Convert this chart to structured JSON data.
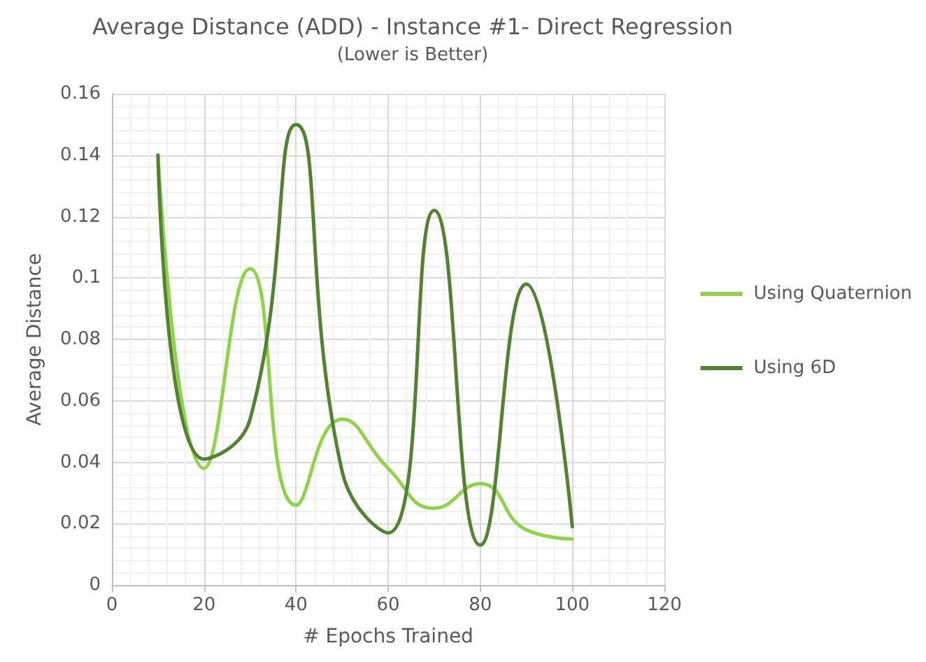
{
  "chart_data": {
    "type": "line",
    "title": "Average Distance (ADD) - Instance #1- Direct Regression",
    "subtitle": "(Lower is Better)",
    "xlabel": "# Epochs Trained",
    "ylabel": "Average Distance",
    "x": [
      10,
      20,
      30,
      40,
      50,
      60,
      70,
      80,
      90,
      100
    ],
    "series": [
      {
        "name": "Using Quaternion",
        "color": "#92d050",
        "values": [
          0.14,
          0.038,
          0.103,
          0.026,
          0.054,
          0.038,
          0.025,
          0.033,
          0.018,
          0.015
        ]
      },
      {
        "name": "Using 6D",
        "color": "#548235",
        "values": [
          0.14,
          0.041,
          0.054,
          0.15,
          0.037,
          0.017,
          0.122,
          0.013,
          0.098,
          0.019
        ]
      }
    ],
    "xlim": [
      0,
      120
    ],
    "xticks": [
      0,
      20,
      40,
      60,
      80,
      100,
      120
    ],
    "ylim": [
      0,
      0.16
    ],
    "yticks": [
      0,
      0.02,
      0.04,
      0.06,
      0.08,
      0.1,
      0.12,
      0.14,
      0.16
    ],
    "grid": true,
    "legend": "right",
    "marker": "none",
    "line_style": "solid"
  }
}
